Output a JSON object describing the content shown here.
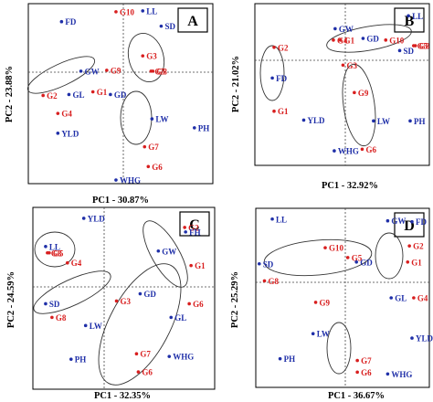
{
  "colors": {
    "genotype": "#d81e1e",
    "trait": "#1f2fa8",
    "frame": "#000000",
    "ellipse": "#333333"
  },
  "chart_data": [
    {
      "panel": "A",
      "type": "scatter",
      "xlabel": "PC1 - 30.87%",
      "ylabel": "PC2 - 23.88%",
      "xlim": [
        -1,
        1
      ],
      "ylim": [
        -1,
        1
      ],
      "grid": false,
      "points": [
        {
          "label": "FD",
          "group": "trait",
          "x": -0.64,
          "y": 0.8
        },
        {
          "label": "G10",
          "group": "genotype",
          "x": -0.05,
          "y": 0.91
        },
        {
          "label": "LL",
          "group": "trait",
          "x": 0.24,
          "y": 0.92
        },
        {
          "label": "SD",
          "group": "trait",
          "x": 0.44,
          "y": 0.75
        },
        {
          "label": "G3",
          "group": "genotype",
          "x": 0.24,
          "y": 0.42
        },
        {
          "label": "G5",
          "group": "genotype",
          "x": 0.33,
          "y": 0.25
        },
        {
          "label": "G8",
          "group": "genotype",
          "x": 0.35,
          "y": 0.25
        },
        {
          "label": "GW",
          "group": "trait",
          "x": -0.43,
          "y": 0.25
        },
        {
          "label": "G9",
          "group": "genotype",
          "x": -0.15,
          "y": 0.26
        },
        {
          "label": "G2",
          "group": "genotype",
          "x": -0.84,
          "y": -0.02
        },
        {
          "label": "G1",
          "group": "genotype",
          "x": -0.3,
          "y": 0.02
        },
        {
          "label": "GL",
          "group": "trait",
          "x": -0.56,
          "y": -0.01
        },
        {
          "label": "GD",
          "group": "trait",
          "x": -0.11,
          "y": -0.01
        },
        {
          "label": "G4",
          "group": "genotype",
          "x": -0.68,
          "y": -0.22
        },
        {
          "label": "YLD",
          "group": "trait",
          "x": -0.68,
          "y": -0.44
        },
        {
          "label": "LW",
          "group": "trait",
          "x": 0.34,
          "y": -0.28
        },
        {
          "label": "PH",
          "group": "trait",
          "x": 0.8,
          "y": -0.38
        },
        {
          "label": "G7",
          "group": "genotype",
          "x": 0.26,
          "y": -0.59
        },
        {
          "label": "G6",
          "group": "genotype",
          "x": 0.3,
          "y": -0.81
        },
        {
          "label": "WHG",
          "group": "trait",
          "x": -0.05,
          "y": -0.96
        }
      ]
    },
    {
      "panel": "B",
      "type": "scatter",
      "xlabel": "PC1 - 32.92%",
      "ylabel": "PC2 - 21.02%",
      "xlim": [
        -1,
        1
      ],
      "ylim": [
        -1,
        1
      ],
      "grid": false,
      "points": [
        {
          "label": "LL",
          "group": "trait",
          "x": 0.76,
          "y": 0.85
        },
        {
          "label": "GW",
          "group": "trait",
          "x": -0.08,
          "y": 0.69
        },
        {
          "label": "G4",
          "group": "genotype",
          "x": -0.1,
          "y": 0.55
        },
        {
          "label": "G1",
          "group": "genotype",
          "x": -0.02,
          "y": 0.55
        },
        {
          "label": "GD",
          "group": "trait",
          "x": 0.24,
          "y": 0.57
        },
        {
          "label": "G10",
          "group": "genotype",
          "x": 0.5,
          "y": 0.55
        },
        {
          "label": "G5",
          "group": "genotype",
          "x": 0.82,
          "y": 0.48
        },
        {
          "label": "G8",
          "group": "genotype",
          "x": 0.84,
          "y": 0.48
        },
        {
          "label": "SD",
          "group": "trait",
          "x": 0.66,
          "y": 0.42
        },
        {
          "label": "G2",
          "group": "genotype",
          "x": -0.78,
          "y": 0.46
        },
        {
          "label": "G3",
          "group": "genotype",
          "x": 0.01,
          "y": 0.24
        },
        {
          "label": "FD",
          "group": "trait",
          "x": -0.8,
          "y": 0.08
        },
        {
          "label": "G9",
          "group": "genotype",
          "x": 0.14,
          "y": -0.1
        },
        {
          "label": "G1",
          "group": "genotype",
          "x": -0.78,
          "y": -0.33
        },
        {
          "label": "YLD",
          "group": "trait",
          "x": -0.44,
          "y": -0.44
        },
        {
          "label": "LW",
          "group": "trait",
          "x": 0.36,
          "y": -0.45
        },
        {
          "label": "PH",
          "group": "trait",
          "x": 0.78,
          "y": -0.45
        },
        {
          "label": "WHG",
          "group": "trait",
          "x": -0.09,
          "y": -0.82
        },
        {
          "label": "G6",
          "group": "genotype",
          "x": 0.23,
          "y": -0.8
        }
      ]
    },
    {
      "panel": "C",
      "type": "scatter",
      "xlabel": "PC1 - 32.35%",
      "ylabel": "PC2 - 24.59%",
      "xlim": [
        -1,
        1
      ],
      "ylim": [
        -1,
        1
      ],
      "grid": false,
      "points": [
        {
          "label": "YLD",
          "group": "trait",
          "x": -0.44,
          "y": 0.88
        },
        {
          "label": "G2",
          "group": "genotype",
          "x": 0.67,
          "y": 0.78
        },
        {
          "label": "FH",
          "group": "trait",
          "x": 0.68,
          "y": 0.73
        },
        {
          "label": "LL",
          "group": "trait",
          "x": -0.86,
          "y": 0.57
        },
        {
          "label": "G5",
          "group": "genotype",
          "x": -0.82,
          "y": 0.5
        },
        {
          "label": "G8",
          "group": "genotype",
          "x": -0.84,
          "y": 0.5
        },
        {
          "label": "GW",
          "group": "trait",
          "x": 0.38,
          "y": 0.52
        },
        {
          "label": "G4",
          "group": "genotype",
          "x": -0.62,
          "y": 0.39
        },
        {
          "label": "G1",
          "group": "genotype",
          "x": 0.74,
          "y": 0.36
        },
        {
          "label": "GD",
          "group": "trait",
          "x": 0.18,
          "y": 0.05
        },
        {
          "label": "SD",
          "group": "trait",
          "x": -0.86,
          "y": -0.06
        },
        {
          "label": "G3",
          "group": "genotype",
          "x": -0.08,
          "y": -0.03
        },
        {
          "label": "G6",
          "group": "genotype",
          "x": 0.72,
          "y": -0.06
        },
        {
          "label": "G8",
          "group": "genotype",
          "x": -0.79,
          "y": -0.21
        },
        {
          "label": "GL",
          "group": "trait",
          "x": 0.52,
          "y": -0.21
        },
        {
          "label": "LW",
          "group": "trait",
          "x": -0.42,
          "y": -0.3
        },
        {
          "label": "PH",
          "group": "trait",
          "x": -0.58,
          "y": -0.67
        },
        {
          "label": "G7",
          "group": "genotype",
          "x": 0.14,
          "y": -0.61
        },
        {
          "label": "WHG",
          "group": "trait",
          "x": 0.5,
          "y": -0.64
        },
        {
          "label": "G6",
          "group": "genotype",
          "x": 0.16,
          "y": -0.81
        }
      ]
    },
    {
      "panel": "D",
      "type": "scatter",
      "xlabel": "PC1 - 36.67%",
      "ylabel": "PC2 - 25.29%",
      "xlim": [
        -1,
        1
      ],
      "ylim": [
        -1,
        1
      ],
      "grid": false,
      "points": [
        {
          "label": "LL",
          "group": "trait",
          "x": -0.81,
          "y": 0.88
        },
        {
          "label": "GW",
          "group": "trait",
          "x": 0.52,
          "y": 0.86
        },
        {
          "label": "FD",
          "group": "trait",
          "x": 0.8,
          "y": 0.85
        },
        {
          "label": "G10",
          "group": "genotype",
          "x": -0.2,
          "y": 0.56
        },
        {
          "label": "G2",
          "group": "genotype",
          "x": 0.77,
          "y": 0.58
        },
        {
          "label": "G5",
          "group": "genotype",
          "x": 0.06,
          "y": 0.45
        },
        {
          "label": "GD",
          "group": "trait",
          "x": 0.16,
          "y": 0.4
        },
        {
          "label": "G1",
          "group": "genotype",
          "x": 0.75,
          "y": 0.4
        },
        {
          "label": "SD",
          "group": "trait",
          "x": -0.96,
          "y": 0.38
        },
        {
          "label": "G8",
          "group": "genotype",
          "x": -0.9,
          "y": 0.19
        },
        {
          "label": "GL",
          "group": "trait",
          "x": 0.56,
          "y": 0.0
        },
        {
          "label": "G4",
          "group": "genotype",
          "x": 0.82,
          "y": 0.0
        },
        {
          "label": "G9",
          "group": "genotype",
          "x": -0.31,
          "y": -0.05
        },
        {
          "label": "LW",
          "group": "trait",
          "x": -0.34,
          "y": -0.4
        },
        {
          "label": "YLD",
          "group": "trait",
          "x": 0.8,
          "y": -0.45
        },
        {
          "label": "PH",
          "group": "trait",
          "x": -0.72,
          "y": -0.68
        },
        {
          "label": "G7",
          "group": "genotype",
          "x": 0.17,
          "y": -0.7
        },
        {
          "label": "G6",
          "group": "genotype",
          "x": 0.17,
          "y": -0.83
        },
        {
          "label": "WHG",
          "group": "trait",
          "x": 0.52,
          "y": -0.85
        }
      ]
    }
  ]
}
